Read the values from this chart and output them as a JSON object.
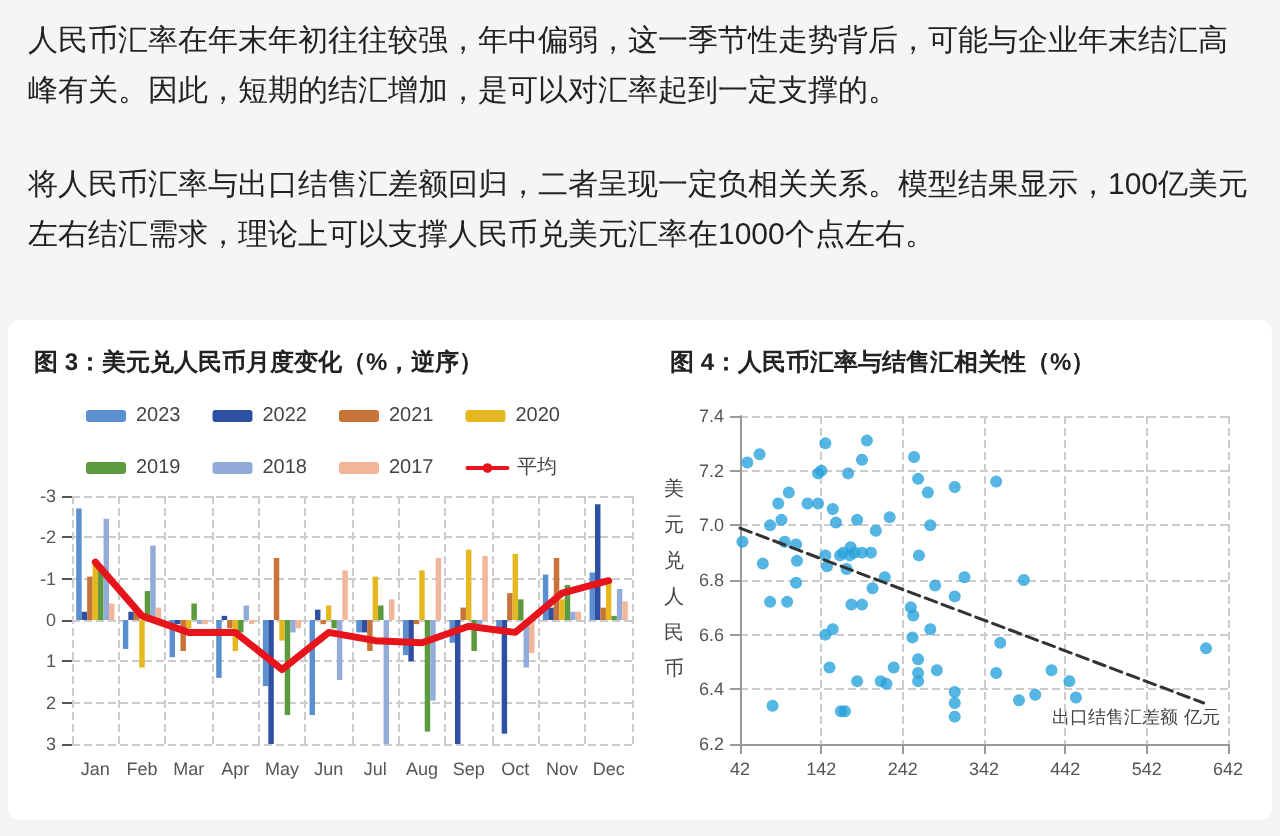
{
  "chart_data": [
    {
      "type": "other",
      "annotations": [
        "人民币汇率在年末年初往往较强，年中偏弱，这一季节性走势背后，可能与企业年末结汇高峰有关。因此，短期的结汇增加，是可以对汇率起到一定支撑的。",
        "将人民币汇率与出口结售汇差额回归，二者呈现一定负相关关系。模型结果显示，100亿美元左右结汇需求，理论上可以支撑人民币兑美元汇率在1000个点左右。"
      ]
    },
    {
      "type": "bar",
      "title": "图 3：美元兑人民币月度变化（%，逆序）",
      "categories": [
        "Jan",
        "Feb",
        "Mar",
        "Apr",
        "May",
        "Jun",
        "Jul",
        "Aug",
        "Sep",
        "Oct",
        "Nov",
        "Dec"
      ],
      "series": [
        {
          "name": "2023",
          "color": "#5b8fd0",
          "values": [
            -2.7,
            0.7,
            0.9,
            1.4,
            1.6,
            2.3,
            0.3,
            0.85,
            0.55,
            0.2,
            -1.1,
            -1.15
          ]
        },
        {
          "name": "2022",
          "color": "#2f4fa3",
          "values": [
            -0.2,
            -0.2,
            0.1,
            -0.1,
            3.0,
            -0.25,
            0.3,
            1.0,
            3.0,
            2.75,
            -0.3,
            -2.8
          ]
        },
        {
          "name": "2021",
          "color": "#c8733a",
          "values": [
            -1.05,
            -0.2,
            0.75,
            0.2,
            -1.5,
            0.1,
            0.75,
            0.1,
            -0.3,
            -0.65,
            -1.5,
            -0.3
          ]
        },
        {
          "name": "2020",
          "color": "#e6b820",
          "values": [
            -1.4,
            1.15,
            0.2,
            0.75,
            0.5,
            -0.35,
            -1.05,
            -1.2,
            -1.7,
            -1.6,
            -0.5,
            -1.0
          ]
        },
        {
          "name": "2019",
          "color": "#5c9a3e",
          "values": [
            -1.2,
            -0.7,
            -0.4,
            0.3,
            2.3,
            0.2,
            -0.35,
            2.7,
            0.75,
            -0.5,
            -0.85,
            -0.1
          ]
        },
        {
          "name": "2018",
          "color": "#93abd9",
          "values": [
            -2.45,
            -1.8,
            0.1,
            -0.35,
            0.3,
            1.45,
            3.0,
            1.95,
            0.1,
            1.15,
            -0.2,
            -0.75
          ]
        },
        {
          "name": "2017",
          "color": "#f2b79a",
          "values": [
            -0.4,
            -0.3,
            0.1,
            0.1,
            0.2,
            -1.2,
            -0.5,
            -1.5,
            -1.55,
            0.8,
            -0.2,
            -0.45
          ]
        },
        {
          "name": "平均",
          "type": "line",
          "color": "#e8141c",
          "marker": "none",
          "values": [
            -1.4,
            -0.1,
            0.3,
            0.3,
            1.2,
            0.3,
            0.5,
            0.55,
            0.15,
            0.3,
            -0.65,
            -0.95
          ]
        }
      ],
      "ylim": [
        3,
        -3
      ],
      "yticks": [
        -3,
        -2,
        -1,
        0,
        1,
        2,
        3
      ],
      "grid": true,
      "legend": "top"
    },
    {
      "type": "scatter",
      "title": "图 4：人民币汇率与结售汇相关性（%）",
      "xlabel": "出口结售汇差额 亿元",
      "ylabel": "美元兑人民币",
      "xlim": [
        42,
        642
      ],
      "xticks": [
        42,
        142,
        242,
        342,
        442,
        542,
        642
      ],
      "ylim": [
        6.2,
        7.4
      ],
      "yticks": [
        6.2,
        6.4,
        6.6,
        6.8,
        {
          "value": 7,
          "label": "7.0"
        },
        7.2,
        7.4
      ],
      "grid": true,
      "marker": "circle",
      "series": [
        {
          "color": "#2aa3dc",
          "x": [
            51,
            66,
            45,
            70,
            79,
            89,
            102,
            93,
            97,
            111,
            112,
            111,
            79,
            100,
            82,
            125,
            138,
            138,
            142,
            147,
            147,
            149,
            147,
            156,
            152,
            156,
            160,
            165,
            169,
            173,
            177,
            178,
            183,
            179,
            166,
            171,
            175,
            186,
            186,
            192,
            198,
            192,
            192,
            203,
            205,
            209,
            220,
            226,
            215,
            222,
            231,
            256,
            261,
            273,
            276,
            262,
            252,
            255,
            254,
            261,
            261,
            261,
            276,
            282,
            284,
            306,
            306,
            318,
            306,
            306,
            306,
            357,
            357,
            362,
            391,
            385,
            405,
            425,
            447,
            455,
            615
          ],
          "values": [
            7.23,
            7.26,
            6.94,
            6.86,
            7.0,
            7.08,
            7.12,
            7.02,
            6.94,
            6.93,
            6.87,
            6.79,
            6.72,
            6.72,
            6.34,
            7.08,
            7.08,
            7.19,
            7.2,
            7.3,
            6.89,
            6.85,
            6.6,
            6.62,
            6.48,
            7.06,
            7.01,
            6.89,
            6.9,
            6.84,
            6.89,
            6.92,
            6.9,
            6.71,
            6.32,
            6.32,
            7.19,
            7.02,
            6.43,
            7.24,
            7.31,
            6.71,
            6.9,
            6.9,
            6.77,
            6.98,
            6.81,
            7.03,
            6.43,
            6.42,
            6.48,
            7.25,
            7.17,
            7.12,
            7.0,
            6.89,
            6.7,
            6.67,
            6.59,
            6.51,
            6.46,
            6.43,
            6.62,
            6.78,
            6.47,
            7.14,
            6.74,
            6.81,
            6.39,
            6.35,
            6.3,
            7.16,
            6.46,
            6.57,
            6.8,
            6.36,
            6.38,
            6.47,
            6.43,
            6.37,
            6.55
          ]
        },
        {
          "type": "line",
          "color": "#333333",
          "line_style": "dashed",
          "marker": "none",
          "x": [
            42,
            612
          ],
          "values": [
            6.99,
            6.35
          ]
        }
      ]
    }
  ]
}
